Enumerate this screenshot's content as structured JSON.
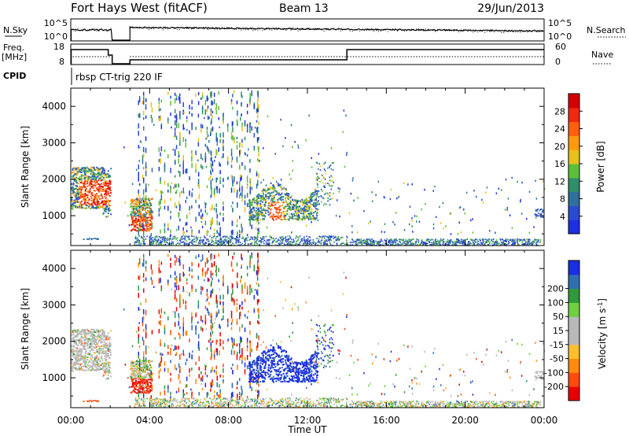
{
  "header": {
    "site": "Fort Hays West (fitACF)",
    "beam": "Beam 13",
    "date": "29/Jun/2013"
  },
  "noise_panel": {
    "left_label": "N.Sky",
    "right_label": "N.Search",
    "ticks": [
      "10^5",
      "10^0"
    ]
  },
  "freq_panel": {
    "left_label_1": "Freq.",
    "left_label_2": "[MHz]",
    "left_ticks": [
      "18",
      "8"
    ],
    "right_label": "Nave",
    "right_ticks": [
      "60",
      "0"
    ]
  },
  "cpid": {
    "label": "CPID",
    "text": "rbsp CT-trig 220 IF"
  },
  "colors": {
    "power": [
      "#1f2fe0",
      "#2a4bd0",
      "#2e6f9e",
      "#2f8f6a",
      "#5cbf3a",
      "#e8c020",
      "#ff9a10",
      "#ff6010",
      "#ee2a10",
      "#d40000"
    ],
    "velocity": [
      "#e80000",
      "#ff4a10",
      "#ff8a10",
      "#ffbf30",
      "#b8b8b8",
      "#b8b8b8",
      "#70d040",
      "#2f9a3a",
      "#2f6fb0",
      "#1a2fe0"
    ]
  },
  "chart_data": [
    {
      "type": "heatmap",
      "name": "power",
      "ylabel": "Slant Range [km]",
      "xlabel": "",
      "x_range": [
        0,
        24
      ],
      "y_range": [
        180,
        4500
      ],
      "y_ticks": [
        "1000",
        "2000",
        "3000",
        "4000"
      ],
      "x_ticks": [],
      "colorbar": {
        "label": "Power [dB]",
        "ticks": [
          "4",
          "8",
          "12",
          "16",
          "20",
          "24",
          "28"
        ],
        "range": [
          0,
          32
        ]
      }
    },
    {
      "type": "heatmap",
      "name": "velocity",
      "ylabel": "Slant Range [km]",
      "xlabel": "Time UT",
      "x_range": [
        0,
        24
      ],
      "y_range": [
        180,
        4500
      ],
      "y_ticks": [
        "1000",
        "2000",
        "3000",
        "4000"
      ],
      "x_ticks": [
        "00:00",
        "04:00",
        "08:00",
        "12:00",
        "16:00",
        "20:00",
        "00:00"
      ],
      "colorbar": {
        "label": "Velocity [m s^-1]",
        "ticks": [
          "-200",
          "-100",
          "-50",
          "-15",
          "15",
          "50",
          "100",
          "200"
        ]
      }
    }
  ]
}
